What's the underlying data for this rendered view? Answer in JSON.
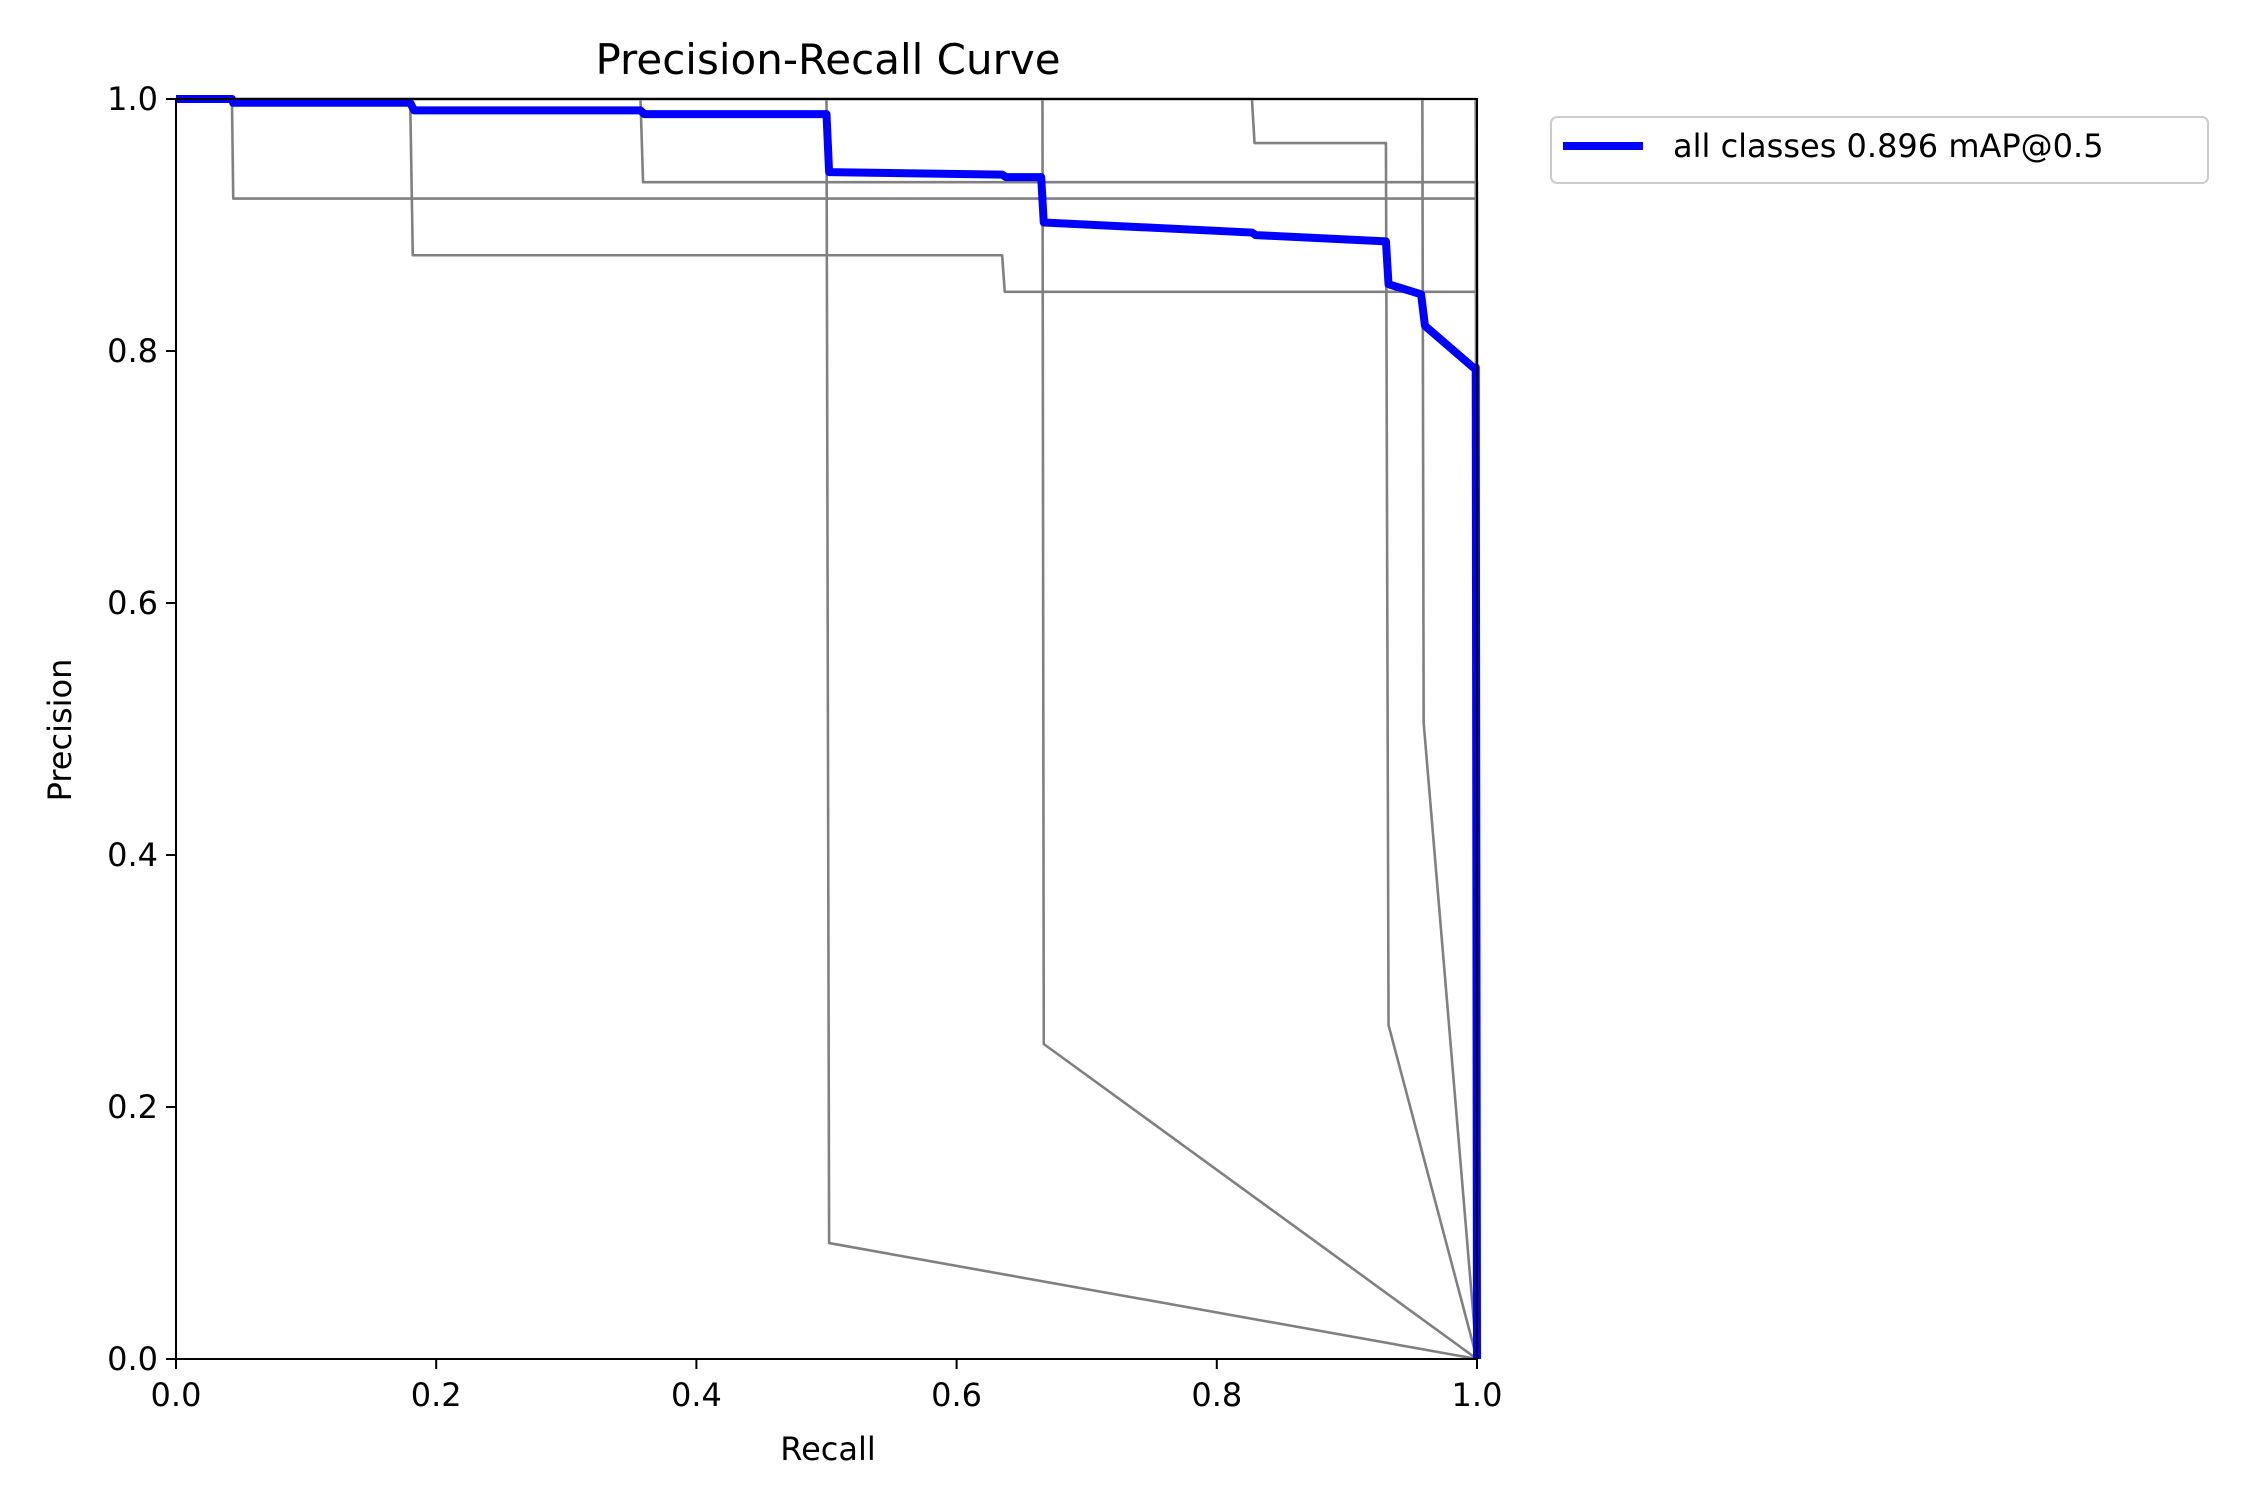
{
  "chart_data": {
    "type": "line",
    "title": "Precision-Recall Curve",
    "xlabel": "Recall",
    "ylabel": "Precision",
    "xlim": [
      0.0,
      1.0
    ],
    "ylim": [
      0.0,
      1.0
    ],
    "xticks": [
      "0.0",
      "0.2",
      "0.4",
      "0.6",
      "0.8",
      "1.0"
    ],
    "yticks": [
      "0.0",
      "0.2",
      "0.4",
      "0.6",
      "0.8",
      "1.0"
    ],
    "grid": false,
    "legend_position": "outside-top-right",
    "legend_entries": [
      "all classes 0.896 mAP@0.5"
    ],
    "series": [
      {
        "name": "all classes 0.896 mAP@0.5",
        "color": "#0000ff",
        "emphasis": "thick",
        "points": [
          [
            0.0,
            1.0
          ],
          [
            0.043,
            1.0
          ],
          [
            0.044,
            0.997
          ],
          [
            0.18,
            0.997
          ],
          [
            0.183,
            0.991
          ],
          [
            0.357,
            0.991
          ],
          [
            0.36,
            0.988
          ],
          [
            0.5,
            0.988
          ],
          [
            0.502,
            0.942
          ],
          [
            0.635,
            0.94
          ],
          [
            0.638,
            0.938
          ],
          [
            0.665,
            0.938
          ],
          [
            0.667,
            0.902
          ],
          [
            0.827,
            0.894
          ],
          [
            0.83,
            0.892
          ],
          [
            0.93,
            0.887
          ],
          [
            0.932,
            0.853
          ],
          [
            0.957,
            0.845
          ],
          [
            0.96,
            0.82
          ],
          [
            0.997,
            0.787
          ],
          [
            0.999,
            0.787
          ],
          [
            1.0,
            0.0
          ]
        ]
      },
      {
        "color": "#808080",
        "points": [
          [
            0.0,
            1.0
          ],
          [
            0.043,
            1.0
          ],
          [
            0.044,
            0.921
          ],
          [
            1.0,
            0.921
          ],
          [
            1.0,
            0.0
          ]
        ]
      },
      {
        "color": "#808080",
        "points": [
          [
            0.0,
            1.0
          ],
          [
            0.18,
            1.0
          ],
          [
            0.182,
            0.876
          ],
          [
            0.635,
            0.876
          ],
          [
            0.637,
            0.847
          ],
          [
            1.0,
            0.847
          ],
          [
            1.0,
            0.0
          ]
        ]
      },
      {
        "color": "#808080",
        "points": [
          [
            0.0,
            1.0
          ],
          [
            0.357,
            1.0
          ],
          [
            0.359,
            0.934
          ],
          [
            1.0,
            0.934
          ],
          [
            1.0,
            0.0
          ]
        ]
      },
      {
        "color": "#808080",
        "points": [
          [
            0.0,
            1.0
          ],
          [
            0.5,
            1.0
          ],
          [
            0.502,
            0.092
          ],
          [
            1.0,
            0.0
          ]
        ]
      },
      {
        "color": "#808080",
        "points": [
          [
            0.0,
            1.0
          ],
          [
            0.666,
            1.0
          ],
          [
            0.667,
            0.25
          ],
          [
            1.0,
            0.0
          ]
        ]
      },
      {
        "color": "#808080",
        "points": [
          [
            0.0,
            1.0
          ],
          [
            0.827,
            1.0
          ],
          [
            0.829,
            0.965
          ],
          [
            0.93,
            0.965
          ],
          [
            0.932,
            0.265
          ],
          [
            1.0,
            0.0
          ]
        ]
      },
      {
        "color": "#808080",
        "points": [
          [
            0.0,
            1.0
          ],
          [
            0.958,
            1.0
          ],
          [
            0.959,
            0.505
          ],
          [
            1.0,
            0.0
          ]
        ]
      },
      {
        "color": "#808080",
        "points": [
          [
            0.0,
            1.0
          ],
          [
            0.999,
            1.0
          ],
          [
            1.0,
            0.0
          ]
        ]
      }
    ]
  }
}
